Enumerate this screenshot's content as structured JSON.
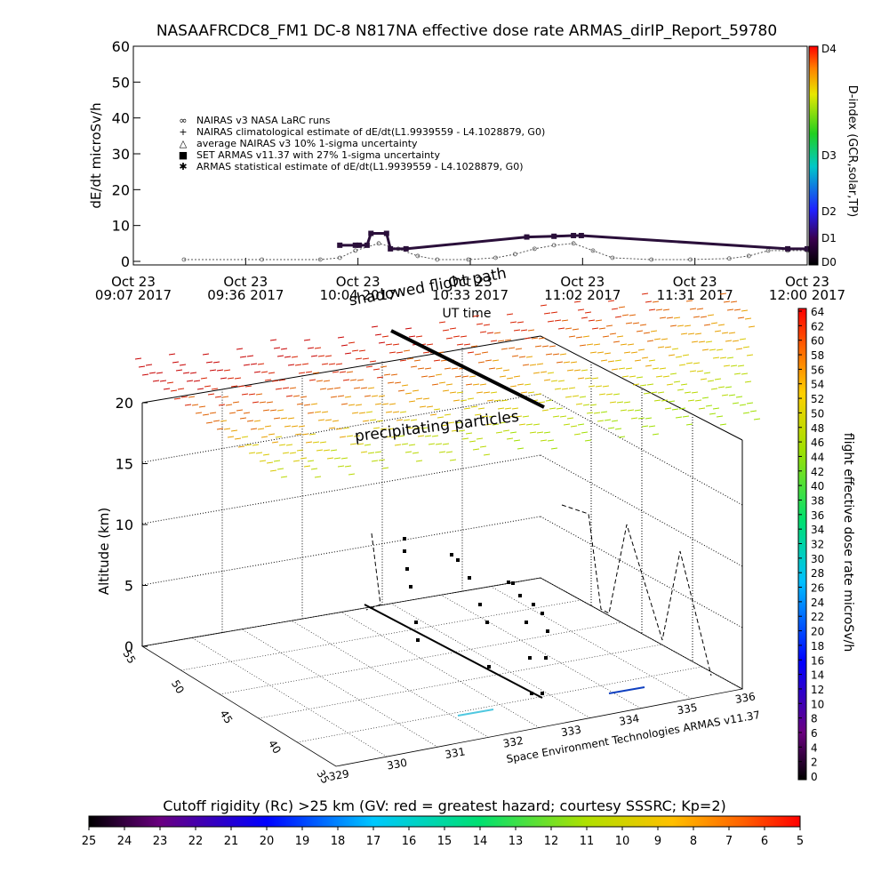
{
  "title": "NASAAFRCDC8_FM1 DC-8    N817NA effective dose rate ARMAS_dirIP_Report_59780",
  "colors": {
    "nairas_line": "#555555",
    "armas_estimate": "#2a0f3a",
    "set_armas": "#1030c0",
    "axis": "#000000"
  },
  "top_chart": {
    "ylabel": "dE/dt microSv/h",
    "xlabel": "UT time",
    "ylim": [
      0,
      60
    ],
    "yticks": [
      "0",
      "10",
      "20",
      "30",
      "40",
      "50",
      "60"
    ],
    "xticks": [
      {
        "date": "Oct 23",
        "time": "09:07 2017"
      },
      {
        "date": "Oct 23",
        "time": "09:36 2017"
      },
      {
        "date": "Oct 23",
        "time": "10:04 2017"
      },
      {
        "date": "Oct 23",
        "time": "10:33 2017"
      },
      {
        "date": "Oct 23",
        "time": "11:02 2017"
      },
      {
        "date": "Oct 23",
        "time": "11:31 2017"
      },
      {
        "date": "Oct 23",
        "time": "12:00 2017"
      }
    ],
    "legend": [
      {
        "symbol": "∞",
        "label": "NAIRAS v3 NASA LaRC runs"
      },
      {
        "symbol": "+",
        "label": "NAIRAS climatological estimate of dE/dt(L1.9939559 - L4.1028879, G0)"
      },
      {
        "symbol": "△",
        "label": "average NAIRAS v3 10% 1-sigma uncertainty"
      },
      {
        "symbol": "■",
        "label": "SET ARMAS v11.37 with 27% 1-sigma uncertainty"
      },
      {
        "symbol": "✱",
        "label": "ARMAS statistical estimate of dE/dt(L1.9939559 - L4.1028879, G0)"
      }
    ],
    "dindex_label": "D-index (GCR,solar,TP)",
    "dindex_ticks": [
      "D4",
      "D3",
      "D2",
      "D1",
      "D0"
    ]
  },
  "bottom_chart": {
    "zlabel": "Altitude (km)",
    "zticks": [
      "0",
      "5",
      "10",
      "15",
      "20"
    ],
    "lat_ticks": [
      "35",
      "40",
      "45",
      "50",
      "55"
    ],
    "lon_ticks": [
      "329",
      "330",
      "331",
      "332",
      "333",
      "334",
      "335",
      "336"
    ],
    "annotation_precip": "precipitating particles",
    "annotation_shadow": "shadowed flight path",
    "credit": "Space Environment Technologies ARMAS v11.37",
    "colorbar_label": "flight effective dose rate microSv/h",
    "colorbar_ticks": [
      "64",
      "62",
      "60",
      "58",
      "56",
      "54",
      "52",
      "50",
      "48",
      "46",
      "44",
      "42",
      "40",
      "38",
      "36",
      "34",
      "32",
      "30",
      "28",
      "26",
      "24",
      "22",
      "20",
      "18",
      "16",
      "14",
      "12",
      "10",
      "8",
      "6",
      "4",
      "2",
      "0"
    ]
  },
  "cutoff": {
    "title": "Cutoff rigidity (Rc) >25 km (GV: red = greatest hazard; courtesy SSSRC; Kp=2)",
    "ticks": [
      "25",
      "24",
      "23",
      "22",
      "21",
      "20",
      "19",
      "18",
      "17",
      "16",
      "15",
      "14",
      "13",
      "12",
      "11",
      "10",
      "9",
      "8",
      "7",
      "6",
      "5"
    ]
  },
  "chart_data": [
    {
      "type": "line",
      "title": "NASAAFRCDC8_FM1 DC-8    N817NA effective dose rate ARMAS_dirIP_Report_59780",
      "xlabel": "UT time",
      "ylabel": "dE/dt microSv/h",
      "ylim": [
        0,
        60
      ],
      "x_range": [
        "09:07",
        "12:00"
      ],
      "series": [
        {
          "name": "NAIRAS v3 NASA LaRC runs",
          "x": [
            "09:20",
            "09:40",
            "09:55",
            "10:00",
            "10:04",
            "10:10",
            "10:15",
            "10:20",
            "10:25",
            "10:33",
            "10:40",
            "10:45",
            "10:50",
            "10:55",
            "11:00",
            "11:05",
            "11:10",
            "11:20",
            "11:30",
            "11:40",
            "11:45",
            "11:50",
            "11:55",
            "12:00"
          ],
          "y": [
            0.5,
            0.5,
            0.5,
            1.0,
            3.0,
            5.0,
            3.5,
            1.5,
            0.5,
            0.5,
            1.0,
            2.0,
            3.5,
            4.5,
            5.0,
            3.0,
            1.0,
            0.5,
            0.5,
            0.8,
            1.5,
            3.0,
            3.0,
            3.0
          ]
        },
        {
          "name": "ARMAS statistical estimate of dE/dt(L1.9939559 - L4.1028879, G0)",
          "x": [
            "10:00",
            "10:04",
            "10:05",
            "10:07",
            "10:08",
            "10:12",
            "10:13",
            "10:17",
            "10:48",
            "10:55",
            "11:00",
            "11:02",
            "11:55",
            "12:00"
          ],
          "y": [
            4.5,
            4.5,
            4.5,
            4.5,
            7.8,
            7.8,
            3.5,
            3.5,
            6.8,
            7.0,
            7.2,
            7.2,
            3.5,
            3.5
          ]
        }
      ]
    },
    {
      "type": "scatter",
      "title": "",
      "zlabel": "Altitude (km)",
      "zlim": [
        0,
        20
      ],
      "lat_ticks": [
        35,
        40,
        45,
        50,
        55
      ],
      "lon_ticks": [
        329,
        330,
        331,
        332,
        333,
        334,
        335,
        336
      ],
      "colorbar_label": "flight effective dose rate microSv/h",
      "colorbar_range": [
        0,
        64
      ]
    },
    {
      "type": "heatmap",
      "title": "Cutoff rigidity (Rc) >25 km (GV: red = greatest hazard; courtesy SSSRC; Kp=2)",
      "range": [
        25,
        5
      ]
    }
  ]
}
